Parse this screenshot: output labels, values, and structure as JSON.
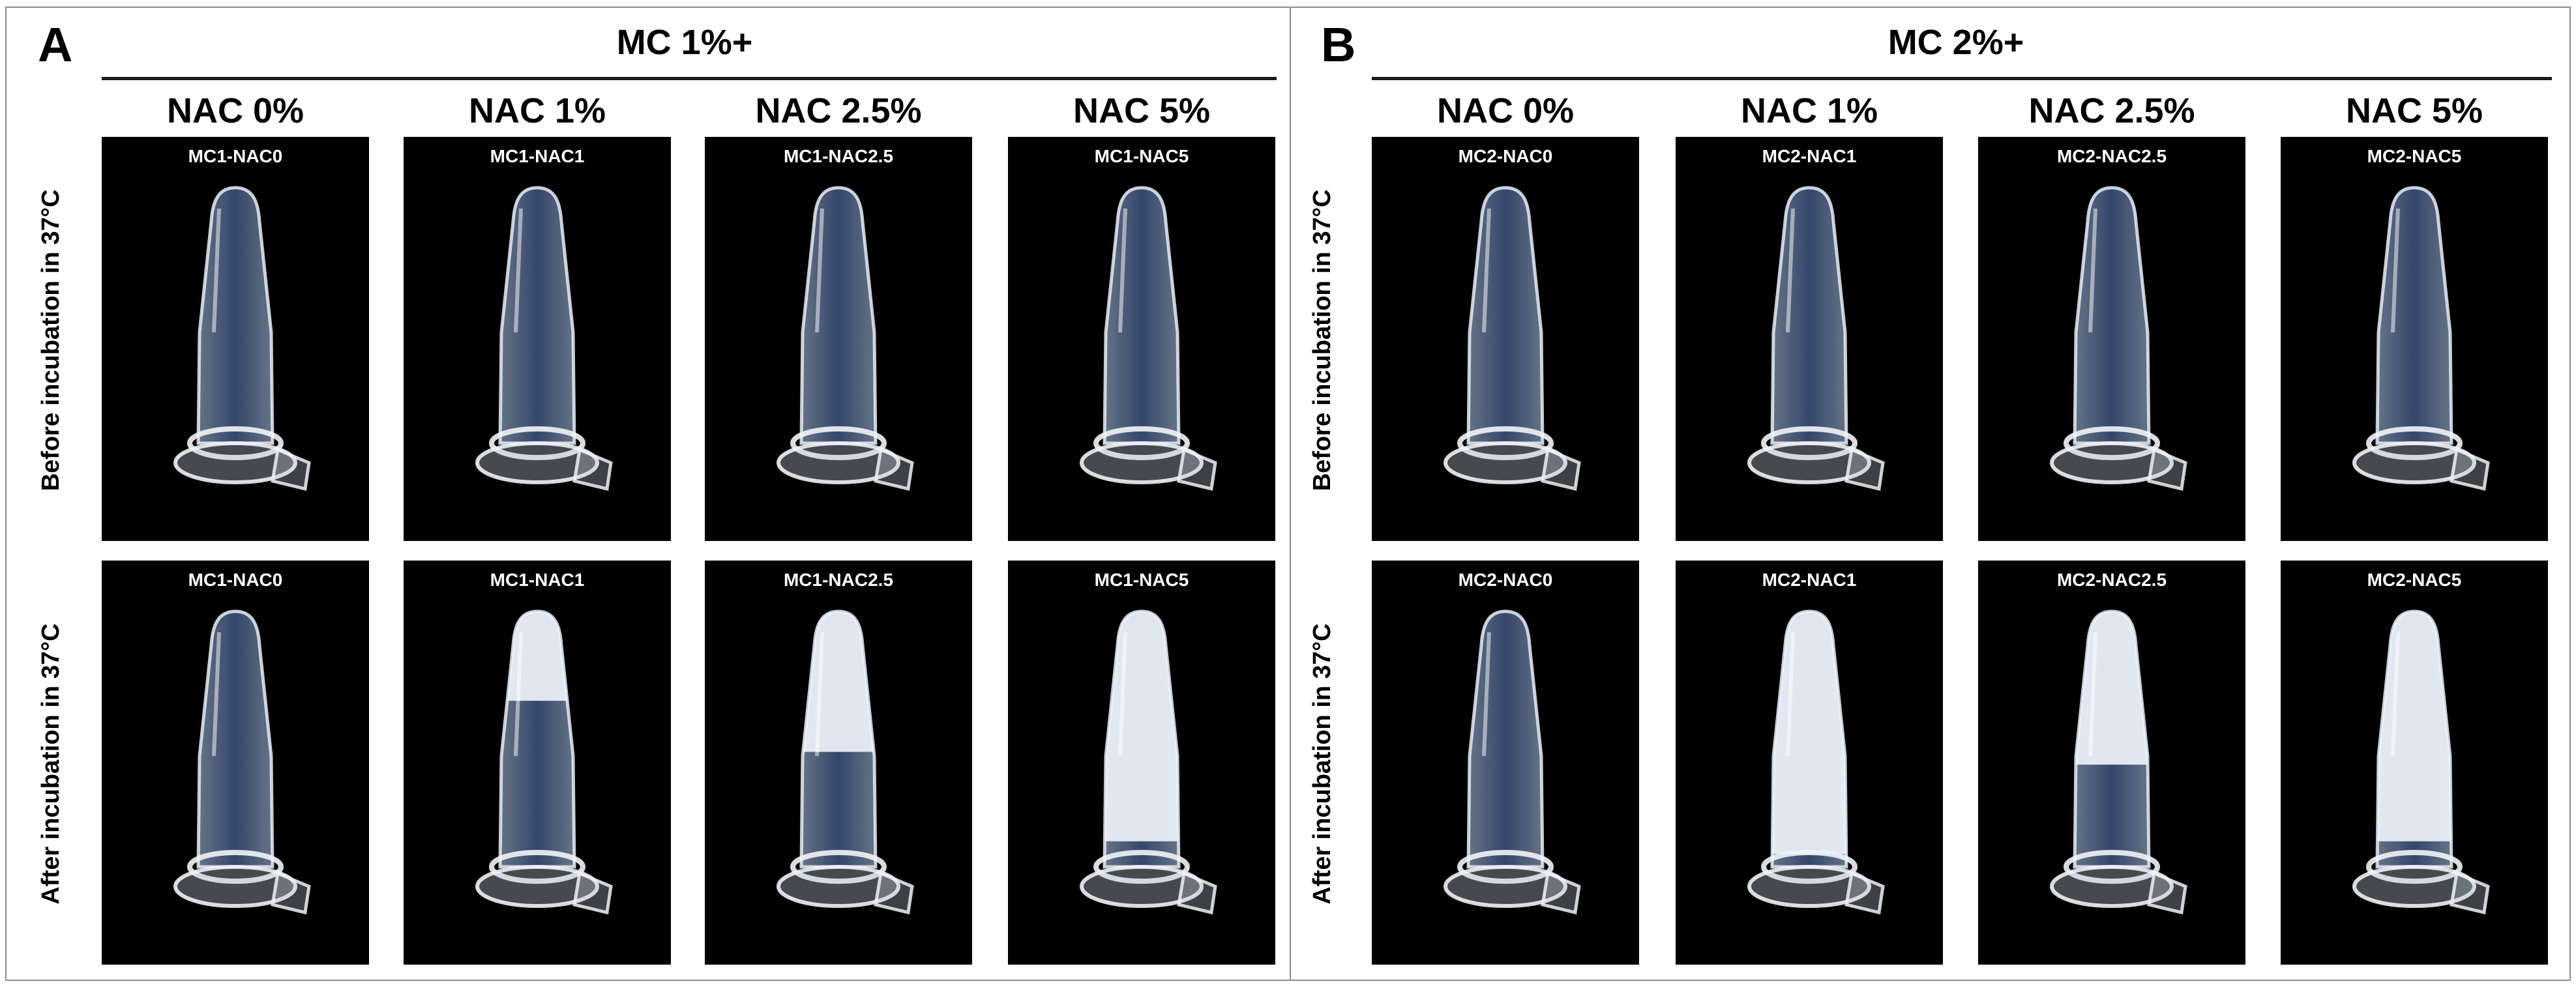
{
  "panels": [
    {
      "letter": "A",
      "group_title": "MC 1%+",
      "columns": [
        "NAC 0%",
        "NAC 1%",
        "NAC 2.5%",
        "NAC 5%"
      ],
      "rows": [
        "Before incubation in 37°C",
        "After incubation in 37°C"
      ],
      "cells": [
        [
          "MC1-NAC0",
          "MC1-NAC1",
          "MC1-NAC2.5",
          "MC1-NAC5"
        ],
        [
          "MC1-NAC0",
          "MC1-NAC1",
          "MC1-NAC2.5",
          "MC1-NAC5"
        ]
      ]
    },
    {
      "letter": "B",
      "group_title": "MC 2%+",
      "columns": [
        "NAC 0%",
        "NAC 1%",
        "NAC 2.5%",
        "NAC 5%"
      ],
      "rows": [
        "Before incubation in 37°C",
        "After incubation in 37°C"
      ],
      "cells": [
        [
          "MC2-NAC0",
          "MC2-NAC1",
          "MC2-NAC2.5",
          "MC2-NAC5"
        ],
        [
          "MC2-NAC0",
          "MC2-NAC1",
          "MC2-NAC2.5",
          "MC2-NAC5"
        ]
      ]
    }
  ],
  "gel_state": {
    "panel_a_after": [
      0.0,
      0.35,
      0.55,
      0.9
    ],
    "panel_b_after": [
      0.0,
      0.95,
      0.6,
      0.9
    ]
  },
  "colors": {
    "background": "#000000",
    "tube_liquid": "#b9d3f2",
    "gel_opaque": "#eef3fb",
    "label_text": "#ffffff"
  }
}
